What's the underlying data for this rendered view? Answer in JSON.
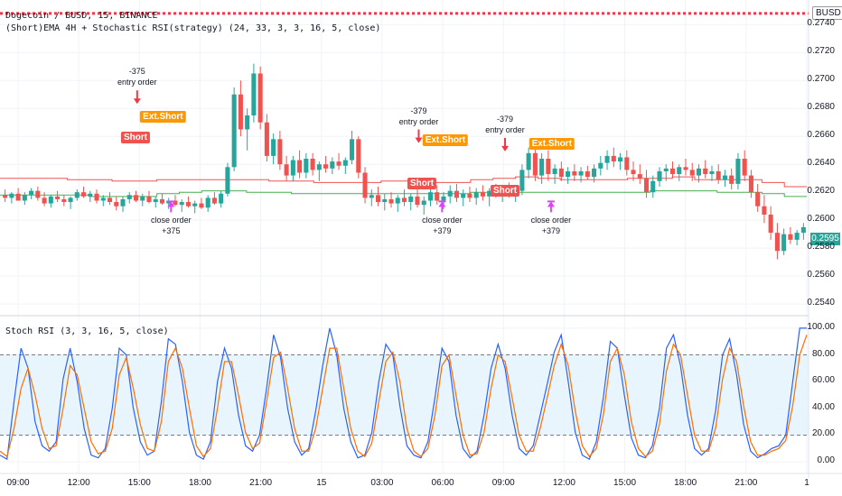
{
  "header": {
    "symbol_line": "Dogecoin / BUSD, 15, BINANCE",
    "strategy_line": "(Short)EMA 4H + Stochastic RSI(strategy) (24, 33, 3, 3, 16, 5, close)",
    "indicator_title": "Stoch RSI (3, 3, 16, 5, close)"
  },
  "currency_badge": "BUSD",
  "current_price": "0.2595",
  "colors": {
    "up": "#26a69a",
    "down": "#ef5350",
    "ema_upper": "#ef5350",
    "ema_lower": "#4caf50",
    "k_line": "#2962ff",
    "d_line": "#ff6d00",
    "short_badge": "#ef5350",
    "exit_badge": "#ff9800",
    "close_arrow": "#e040fb",
    "band_fill": "#e3f2fd"
  },
  "chart_data": [
    {
      "type": "candlestick",
      "title": "Dogecoin / BUSD, 15, BINANCE",
      "y_ticks": [
        "0.2740",
        "0.2720",
        "0.2700",
        "0.2680",
        "0.2660",
        "0.2640",
        "0.2620",
        "0.2600",
        "0.2580",
        "0.2560",
        "0.2540"
      ],
      "ylim": [
        0.2533,
        0.2755
      ],
      "x_ticks": [
        "09:00",
        "12:00",
        "15:00",
        "18:00",
        "21:00",
        "15",
        "03:00",
        "06:00",
        "09:00",
        "12:00",
        "15:00",
        "18:00",
        "21:00",
        "1"
      ],
      "stop_line": 0.2748,
      "ema_upper": [
        0.263,
        0.263,
        0.263,
        0.2629,
        0.2629,
        0.2628,
        0.2628,
        0.2629,
        0.2629,
        0.2629,
        0.2629,
        0.2629,
        0.2628,
        0.2628,
        0.2627,
        0.2627,
        0.2627,
        0.2628,
        0.2628,
        0.2627,
        0.2627,
        0.2629,
        0.263,
        0.2631,
        0.263,
        0.2629,
        0.2629,
        0.2629,
        0.263,
        0.263,
        0.2631,
        0.2629,
        0.2629,
        0.2629,
        0.2627,
        0.2624
      ],
      "ema_lower": [
        0.2618,
        0.2618,
        0.2618,
        0.2618,
        0.2617,
        0.2617,
        0.2617,
        0.2619,
        0.262,
        0.2621,
        0.2621,
        0.262,
        0.262,
        0.2619,
        0.2619,
        0.2619,
        0.2619,
        0.2619,
        0.2619,
        0.2619,
        0.2619,
        0.262,
        0.262,
        0.262,
        0.262,
        0.262,
        0.262,
        0.262,
        0.262,
        0.2621,
        0.2621,
        0.2621,
        0.262,
        0.262,
        0.2619,
        0.2617
      ],
      "candles": [
        [
          0.2618,
          0.2622,
          0.2613,
          0.2616
        ],
        [
          0.2616,
          0.262,
          0.2612,
          0.2619
        ],
        [
          0.2619,
          0.2623,
          0.2614,
          0.2614
        ],
        [
          0.2614,
          0.262,
          0.2611,
          0.2618
        ],
        [
          0.2618,
          0.2623,
          0.2615,
          0.2621
        ],
        [
          0.2621,
          0.2624,
          0.2614,
          0.2616
        ],
        [
          0.2616,
          0.262,
          0.261,
          0.2612
        ],
        [
          0.2612,
          0.2618,
          0.2609,
          0.2617
        ],
        [
          0.2617,
          0.2621,
          0.2613,
          0.2615
        ],
        [
          0.2615,
          0.2618,
          0.261,
          0.2613
        ],
        [
          0.2613,
          0.2617,
          0.2608,
          0.2616
        ],
        [
          0.2616,
          0.2622,
          0.2614,
          0.262
        ],
        [
          0.262,
          0.2624,
          0.2616,
          0.2617
        ],
        [
          0.2617,
          0.2621,
          0.2613,
          0.2619
        ],
        [
          0.2619,
          0.2622,
          0.2612,
          0.2614
        ],
        [
          0.2614,
          0.2618,
          0.261,
          0.2616
        ],
        [
          0.2616,
          0.262,
          0.2611,
          0.2613
        ],
        [
          0.2613,
          0.2617,
          0.2607,
          0.261
        ],
        [
          0.261,
          0.2617,
          0.2606,
          0.2615
        ],
        [
          0.2615,
          0.262,
          0.2612,
          0.2618
        ],
        [
          0.2618,
          0.2621,
          0.2613,
          0.2614
        ],
        [
          0.2614,
          0.2619,
          0.261,
          0.2617
        ],
        [
          0.2617,
          0.2621,
          0.2612,
          0.2613
        ],
        [
          0.2613,
          0.2617,
          0.2609,
          0.2615
        ],
        [
          0.2615,
          0.2619,
          0.2611,
          0.2612
        ],
        [
          0.2612,
          0.2616,
          0.2608,
          0.2614
        ],
        [
          0.2614,
          0.2618,
          0.261,
          0.2611
        ],
        [
          0.2611,
          0.2615,
          0.2606,
          0.2613
        ],
        [
          0.2613,
          0.2617,
          0.2609,
          0.261
        ],
        [
          0.261,
          0.2614,
          0.2605,
          0.2612
        ],
        [
          0.2612,
          0.2616,
          0.2608,
          0.2609
        ],
        [
          0.2609,
          0.2618,
          0.2606,
          0.2616
        ],
        [
          0.2616,
          0.262,
          0.2611,
          0.2612
        ],
        [
          0.2612,
          0.2621,
          0.2609,
          0.2619
        ],
        [
          0.2619,
          0.2641,
          0.2617,
          0.2638
        ],
        [
          0.2638,
          0.2695,
          0.2635,
          0.269
        ],
        [
          0.269,
          0.27,
          0.266,
          0.2665
        ],
        [
          0.2665,
          0.268,
          0.265,
          0.2675
        ],
        [
          0.2675,
          0.2712,
          0.267,
          0.2705
        ],
        [
          0.2705,
          0.271,
          0.2665,
          0.267
        ],
        [
          0.267,
          0.2676,
          0.2642,
          0.2646
        ],
        [
          0.2646,
          0.2662,
          0.264,
          0.2658
        ],
        [
          0.2658,
          0.2664,
          0.2636,
          0.264
        ],
        [
          0.264,
          0.2646,
          0.2628,
          0.2632
        ],
        [
          0.2632,
          0.2646,
          0.2628,
          0.2643
        ],
        [
          0.2643,
          0.265,
          0.263,
          0.2634
        ],
        [
          0.2634,
          0.2648,
          0.263,
          0.2644
        ],
        [
          0.2644,
          0.2648,
          0.2632,
          0.2636
        ],
        [
          0.2636,
          0.2642,
          0.2628,
          0.264
        ],
        [
          0.264,
          0.2646,
          0.2634,
          0.2637
        ],
        [
          0.2637,
          0.2645,
          0.2633,
          0.2642
        ],
        [
          0.2642,
          0.2648,
          0.2636,
          0.2639
        ],
        [
          0.2639,
          0.2645,
          0.2633,
          0.2643
        ],
        [
          0.2643,
          0.2664,
          0.264,
          0.2658
        ],
        [
          0.2658,
          0.266,
          0.263,
          0.2634
        ],
        [
          0.2634,
          0.2638,
          0.2612,
          0.2616
        ],
        [
          0.2616,
          0.2622,
          0.261,
          0.2618
        ],
        [
          0.2618,
          0.2624,
          0.261,
          0.2613
        ],
        [
          0.2613,
          0.2619,
          0.2607,
          0.2615
        ],
        [
          0.2615,
          0.262,
          0.2609,
          0.2612
        ],
        [
          0.2612,
          0.2618,
          0.2606,
          0.2616
        ],
        [
          0.2616,
          0.2622,
          0.261,
          0.2613
        ],
        [
          0.2613,
          0.2619,
          0.2607,
          0.2617
        ],
        [
          0.2617,
          0.2622,
          0.2609,
          0.2611
        ],
        [
          0.2611,
          0.2617,
          0.2604,
          0.2614
        ],
        [
          0.2614,
          0.2624,
          0.261,
          0.262
        ],
        [
          0.262,
          0.2625,
          0.2611,
          0.2614
        ],
        [
          0.2614,
          0.262,
          0.2608,
          0.2617
        ],
        [
          0.2617,
          0.2625,
          0.2612,
          0.2621
        ],
        [
          0.2621,
          0.2626,
          0.2613,
          0.2616
        ],
        [
          0.2616,
          0.2622,
          0.261,
          0.2619
        ],
        [
          0.2619,
          0.2624,
          0.2613,
          0.2616
        ],
        [
          0.2616,
          0.2623,
          0.2611,
          0.262
        ],
        [
          0.262,
          0.2625,
          0.2614,
          0.2617
        ],
        [
          0.2617,
          0.2623,
          0.261,
          0.2621
        ],
        [
          0.2621,
          0.2626,
          0.2616,
          0.2619
        ],
        [
          0.2619,
          0.2624,
          0.2613,
          0.2622
        ],
        [
          0.2622,
          0.2627,
          0.2616,
          0.2618
        ],
        [
          0.2618,
          0.2624,
          0.2613,
          0.2621
        ],
        [
          0.2621,
          0.264,
          0.2618,
          0.2636
        ],
        [
          0.2636,
          0.2652,
          0.263,
          0.2648
        ],
        [
          0.2648,
          0.2652,
          0.2628,
          0.2632
        ],
        [
          0.2632,
          0.2648,
          0.2626,
          0.2644
        ],
        [
          0.2644,
          0.265,
          0.2628,
          0.2633
        ],
        [
          0.2633,
          0.264,
          0.2626,
          0.2637
        ],
        [
          0.2637,
          0.2642,
          0.2628,
          0.2631
        ],
        [
          0.2631,
          0.2638,
          0.2626,
          0.2635
        ],
        [
          0.2635,
          0.264,
          0.2628,
          0.2632
        ],
        [
          0.2632,
          0.2638,
          0.2627,
          0.2635
        ],
        [
          0.2635,
          0.2639,
          0.2629,
          0.2631
        ],
        [
          0.2631,
          0.264,
          0.2627,
          0.2637
        ],
        [
          0.2637,
          0.2646,
          0.2632,
          0.2641
        ],
        [
          0.2641,
          0.265,
          0.2636,
          0.2646
        ],
        [
          0.2646,
          0.2652,
          0.2638,
          0.2642
        ],
        [
          0.2642,
          0.2648,
          0.2636,
          0.2645
        ],
        [
          0.2645,
          0.265,
          0.2632,
          0.2636
        ],
        [
          0.2636,
          0.2642,
          0.2628,
          0.2633
        ],
        [
          0.2633,
          0.264,
          0.2626,
          0.263
        ],
        [
          0.263,
          0.2636,
          0.2616,
          0.262
        ],
        [
          0.262,
          0.2632,
          0.2616,
          0.2628
        ],
        [
          0.2628,
          0.2638,
          0.2624,
          0.2635
        ],
        [
          0.2635,
          0.264,
          0.2628,
          0.2637
        ],
        [
          0.2637,
          0.2642,
          0.263,
          0.2633
        ],
        [
          0.2633,
          0.264,
          0.2628,
          0.2638
        ],
        [
          0.2638,
          0.2644,
          0.2632,
          0.2636
        ],
        [
          0.2636,
          0.2641,
          0.2628,
          0.2632
        ],
        [
          0.2632,
          0.264,
          0.2627,
          0.2637
        ],
        [
          0.2637,
          0.2643,
          0.263,
          0.2633
        ],
        [
          0.2633,
          0.2639,
          0.2628,
          0.2635
        ],
        [
          0.2635,
          0.264,
          0.2626,
          0.2629
        ],
        [
          0.2629,
          0.2636,
          0.2624,
          0.2632
        ],
        [
          0.2632,
          0.2637,
          0.2622,
          0.2626
        ],
        [
          0.2626,
          0.2648,
          0.2622,
          0.2644
        ],
        [
          0.2644,
          0.265,
          0.2628,
          0.2632
        ],
        [
          0.2632,
          0.2636,
          0.2616,
          0.262
        ],
        [
          0.262,
          0.2626,
          0.2606,
          0.261
        ],
        [
          0.261,
          0.2618,
          0.2598,
          0.2604
        ],
        [
          0.2604,
          0.261,
          0.2586,
          0.2591
        ],
        [
          0.2591,
          0.2598,
          0.2572,
          0.2578
        ],
        [
          0.2578,
          0.2594,
          0.2575,
          0.259
        ],
        [
          0.259,
          0.2595,
          0.2583,
          0.2586
        ],
        [
          0.2586,
          0.2593,
          0.2582,
          0.2591
        ],
        [
          0.2591,
          0.2598,
          0.2586,
          0.2595
        ]
      ],
      "annotations": [
        {
          "kind": "entry",
          "qty": "-375",
          "text": "entry order",
          "x": 0.17,
          "price": 0.268
        },
        {
          "kind": "entry",
          "qty": "-379",
          "text": "entry order",
          "x": 0.519,
          "price": 0.2652
        },
        {
          "kind": "entry",
          "qty": "-379",
          "text": "entry order",
          "x": 0.626,
          "price": 0.2646
        },
        {
          "kind": "close",
          "text": "close order",
          "qty": "+375",
          "x": 0.212,
          "price": 0.2616
        },
        {
          "kind": "close",
          "text": "close order",
          "qty": "+379",
          "x": 0.548,
          "price": 0.2616
        },
        {
          "kind": "close",
          "text": "close order",
          "qty": "+379",
          "x": 0.683,
          "price": 0.2616
        }
      ],
      "short_labels": [
        {
          "text": "Short",
          "x": 0.168,
          "price": 0.2658
        },
        {
          "text": "Short",
          "x": 0.523,
          "price": 0.2625
        },
        {
          "text": "Short",
          "x": 0.626,
          "price": 0.262
        }
      ],
      "exit_labels": [
        {
          "text": "Ext.Short",
          "x": 0.202,
          "price": 0.2673
        },
        {
          "text": "Ext.Short",
          "x": 0.552,
          "price": 0.2656
        },
        {
          "text": "Ext.Short",
          "x": 0.684,
          "price": 0.2654
        }
      ]
    },
    {
      "type": "line",
      "title": "Stoch RSI (3, 3, 16, 5, close)",
      "y_ticks": [
        "100.00",
        "80.00",
        "60.00",
        "40.00",
        "20.00",
        "0.00"
      ],
      "ylim": [
        -8,
        108
      ],
      "band": [
        20,
        80
      ],
      "series": [
        {
          "key": "k",
          "values": [
            5,
            2,
            45,
            85,
            70,
            30,
            12,
            8,
            15,
            62,
            85,
            60,
            25,
            5,
            3,
            10,
            40,
            85,
            80,
            40,
            15,
            5,
            8,
            45,
            92,
            88,
            60,
            22,
            5,
            2,
            15,
            60,
            85,
            70,
            35,
            12,
            8,
            20,
            55,
            95,
            78,
            40,
            15,
            5,
            10,
            38,
            72,
            100,
            80,
            40,
            15,
            3,
            5,
            22,
            60,
            88,
            80,
            42,
            12,
            5,
            3,
            15,
            48,
            85,
            75,
            35,
            10,
            3,
            8,
            35,
            70,
            88,
            70,
            35,
            10,
            5,
            12,
            35,
            58,
            82,
            95,
            60,
            22,
            5,
            2,
            15,
            48,
            90,
            85,
            50,
            18,
            5,
            3,
            12,
            40,
            85,
            95,
            72,
            35,
            10,
            5,
            10,
            38,
            80,
            92,
            65,
            28,
            8,
            3,
            6,
            10,
            12,
            20,
            60,
            100,
            100
          ]
        },
        {
          "key": "d",
          "values": [
            8,
            4,
            25,
            55,
            70,
            50,
            25,
            10,
            12,
            40,
            72,
            65,
            40,
            15,
            6,
            8,
            25,
            65,
            78,
            55,
            28,
            10,
            8,
            30,
            75,
            85,
            70,
            40,
            12,
            4,
            10,
            40,
            75,
            75,
            50,
            22,
            10,
            14,
            45,
            78,
            82,
            55,
            25,
            8,
            8,
            25,
            55,
            85,
            85,
            55,
            25,
            8,
            4,
            14,
            45,
            75,
            82,
            60,
            25,
            8,
            4,
            10,
            35,
            72,
            80,
            50,
            20,
            5,
            6,
            22,
            55,
            80,
            75,
            48,
            20,
            8,
            8,
            25,
            48,
            72,
            88,
            72,
            38,
            12,
            4,
            10,
            35,
            75,
            85,
            65,
            30,
            10,
            4,
            8,
            28,
            68,
            88,
            80,
            50,
            20,
            8,
            8,
            25,
            62,
            85,
            75,
            42,
            15,
            5,
            5,
            8,
            10,
            16,
            42,
            80,
            95
          ]
        }
      ]
    }
  ]
}
